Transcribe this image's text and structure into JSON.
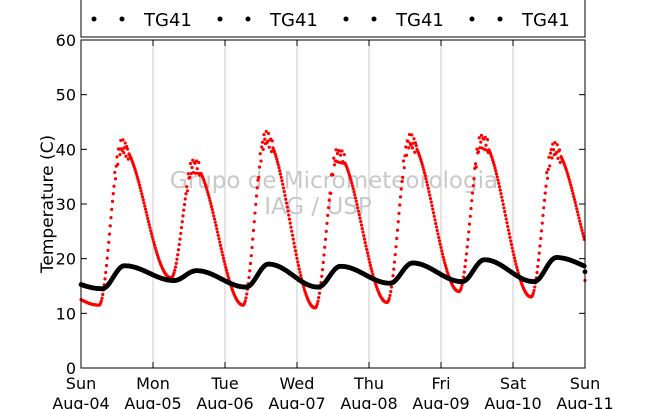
{
  "chart_data": {
    "type": "scatter",
    "ylabel": "Temperature (C)",
    "ylim": [
      0,
      60
    ],
    "yticks": [
      0,
      10,
      20,
      30,
      40,
      50,
      60
    ],
    "xlim": [
      "2013-08-04 00:00",
      "2013-08-11 00:00"
    ],
    "xtick_labels": [
      {
        "day": "Sun",
        "date": "Aug-04"
      },
      {
        "day": "Mon",
        "date": "Aug-05"
      },
      {
        "day": "Tue",
        "date": "Aug-06"
      },
      {
        "day": "Wed",
        "date": "Aug-07"
      },
      {
        "day": "Thu",
        "date": "Aug-08"
      },
      {
        "day": "Fri",
        "date": "Aug-09"
      },
      {
        "day": "Sat",
        "date": "Aug-10"
      },
      {
        "day": "Sun",
        "date": "Aug-11"
      }
    ],
    "grid": "vertical",
    "legend": {
      "placement": "top",
      "entries": [
        "TG41",
        "TG41",
        "TG41",
        "TG41"
      ]
    },
    "watermark": [
      "Grupo de Micrometeorologia",
      "IAG / USP"
    ],
    "series": [
      {
        "color": "#ff0000",
        "marker": "dot",
        "daily_extremes": [
          {
            "date": "Aug-04",
            "min": 11.5,
            "max": 40.5
          },
          {
            "date": "Aug-05",
            "min": 16.5,
            "max": 37.0
          },
          {
            "date": "Aug-06",
            "min": 11.5,
            "max": 42.0
          },
          {
            "date": "Aug-07",
            "min": 11.0,
            "max": 39.0
          },
          {
            "date": "Aug-08",
            "min": 12.0,
            "max": 41.5
          },
          {
            "date": "Aug-09",
            "min": 14.0,
            "max": 41.5
          },
          {
            "date": "Aug-10",
            "min": 13.0,
            "max": 40.0
          },
          {
            "date": "Aug-11",
            "min": 16.0
          }
        ]
      },
      {
        "color": "#000000",
        "marker": "dot",
        "daily_extremes": [
          {
            "date": "Aug-04",
            "min": 14.5,
            "max": 18.7
          },
          {
            "date": "Aug-05",
            "min": 16.0,
            "max": 17.8
          },
          {
            "date": "Aug-06",
            "min": 14.8,
            "max": 19.0
          },
          {
            "date": "Aug-07",
            "min": 14.8,
            "max": 18.6
          },
          {
            "date": "Aug-08",
            "min": 15.5,
            "max": 19.2
          },
          {
            "date": "Aug-09",
            "min": 15.8,
            "max": 19.8
          },
          {
            "date": "Aug-10",
            "min": 15.8,
            "max": 20.2
          },
          {
            "date": "Aug-11",
            "min": 17.6
          }
        ]
      }
    ]
  }
}
